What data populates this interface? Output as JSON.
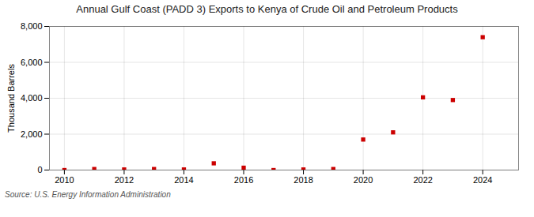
{
  "chart_data": {
    "type": "scatter",
    "title": "Annual Gulf Coast (PADD 3) Exports to Kenya of Crude Oil and Petroleum Products",
    "ylabel": "Thousand Barrels",
    "caption": "Source: U.S. Energy Information Administration",
    "x": [
      2010,
      2011,
      2012,
      2013,
      2014,
      2015,
      2016,
      2017,
      2018,
      2019,
      2020,
      2021,
      2022,
      2023,
      2024
    ],
    "values": [
      0,
      57,
      32,
      57,
      32,
      375,
      130,
      0,
      32,
      57,
      1700,
      2100,
      4050,
      3900,
      7400
    ],
    "color": "#cc0000",
    "marker": "square",
    "xlim": [
      2009.5,
      2025.2
    ],
    "xticks": [
      2010,
      2012,
      2014,
      2016,
      2018,
      2020,
      2022,
      2024
    ],
    "ylim": [
      0,
      8000
    ],
    "yticks": [
      0,
      {
        "value": 2000,
        "label": "2,000"
      },
      {
        "value": 4000,
        "label": "4,000"
      },
      {
        "value": 6000,
        "label": "6,000"
      },
      {
        "value": 8000,
        "label": "8,000"
      }
    ],
    "grid": true
  }
}
